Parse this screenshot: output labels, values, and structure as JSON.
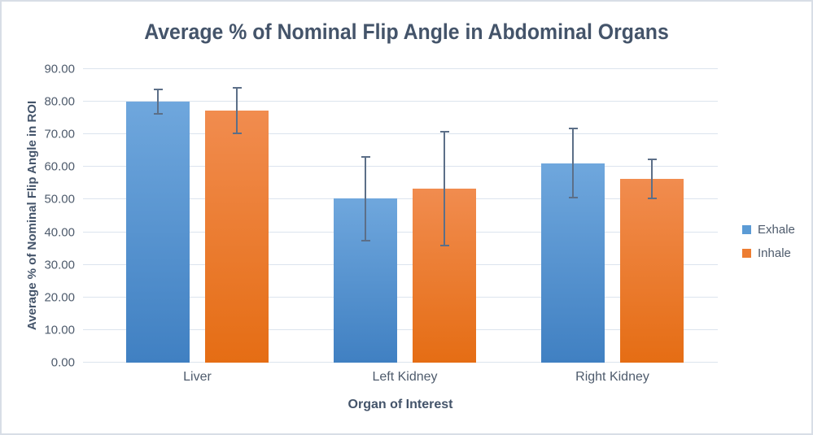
{
  "chart_data": {
    "type": "bar",
    "title": "Average % of Nominal Flip Angle in Abdominal Organs",
    "xlabel": "Organ of Interest",
    "ylabel": "Average % of Nominal Flip Angle in ROI",
    "categories": [
      "Liver",
      "Left Kidney",
      "Right Kidney"
    ],
    "series": [
      {
        "name": "Exhale",
        "values": [
          80.0,
          50.3,
          61.1
        ],
        "errors": [
          3.8,
          12.9,
          10.6
        ],
        "color_top": "#6FA7DD",
        "color_bottom": "#4080C2",
        "legend_color": "#5B9BD5"
      },
      {
        "name": "Inhale",
        "values": [
          77.2,
          53.4,
          56.4
        ],
        "errors": [
          7.0,
          17.4,
          6.0
        ],
        "color_top": "#F18C4F",
        "color_bottom": "#E56D14",
        "legend_color": "#ED7D31"
      }
    ],
    "ylim": [
      0,
      90
    ],
    "ytick_step": 10,
    "ytick_labels": [
      "0.00",
      "10.00",
      "20.00",
      "30.00",
      "40.00",
      "50.00",
      "60.00",
      "70.00",
      "80.00",
      "90.00"
    ],
    "grid": true,
    "legend_position": "right",
    "error_bars": true,
    "colors": {
      "title": "#44546A",
      "tick_label": "#4E5B6C",
      "error_bar": "#5C6F88",
      "gridline": "#DCE4EE",
      "canvas_border": "#D8DEE6",
      "background": "#FFFFFF"
    }
  }
}
